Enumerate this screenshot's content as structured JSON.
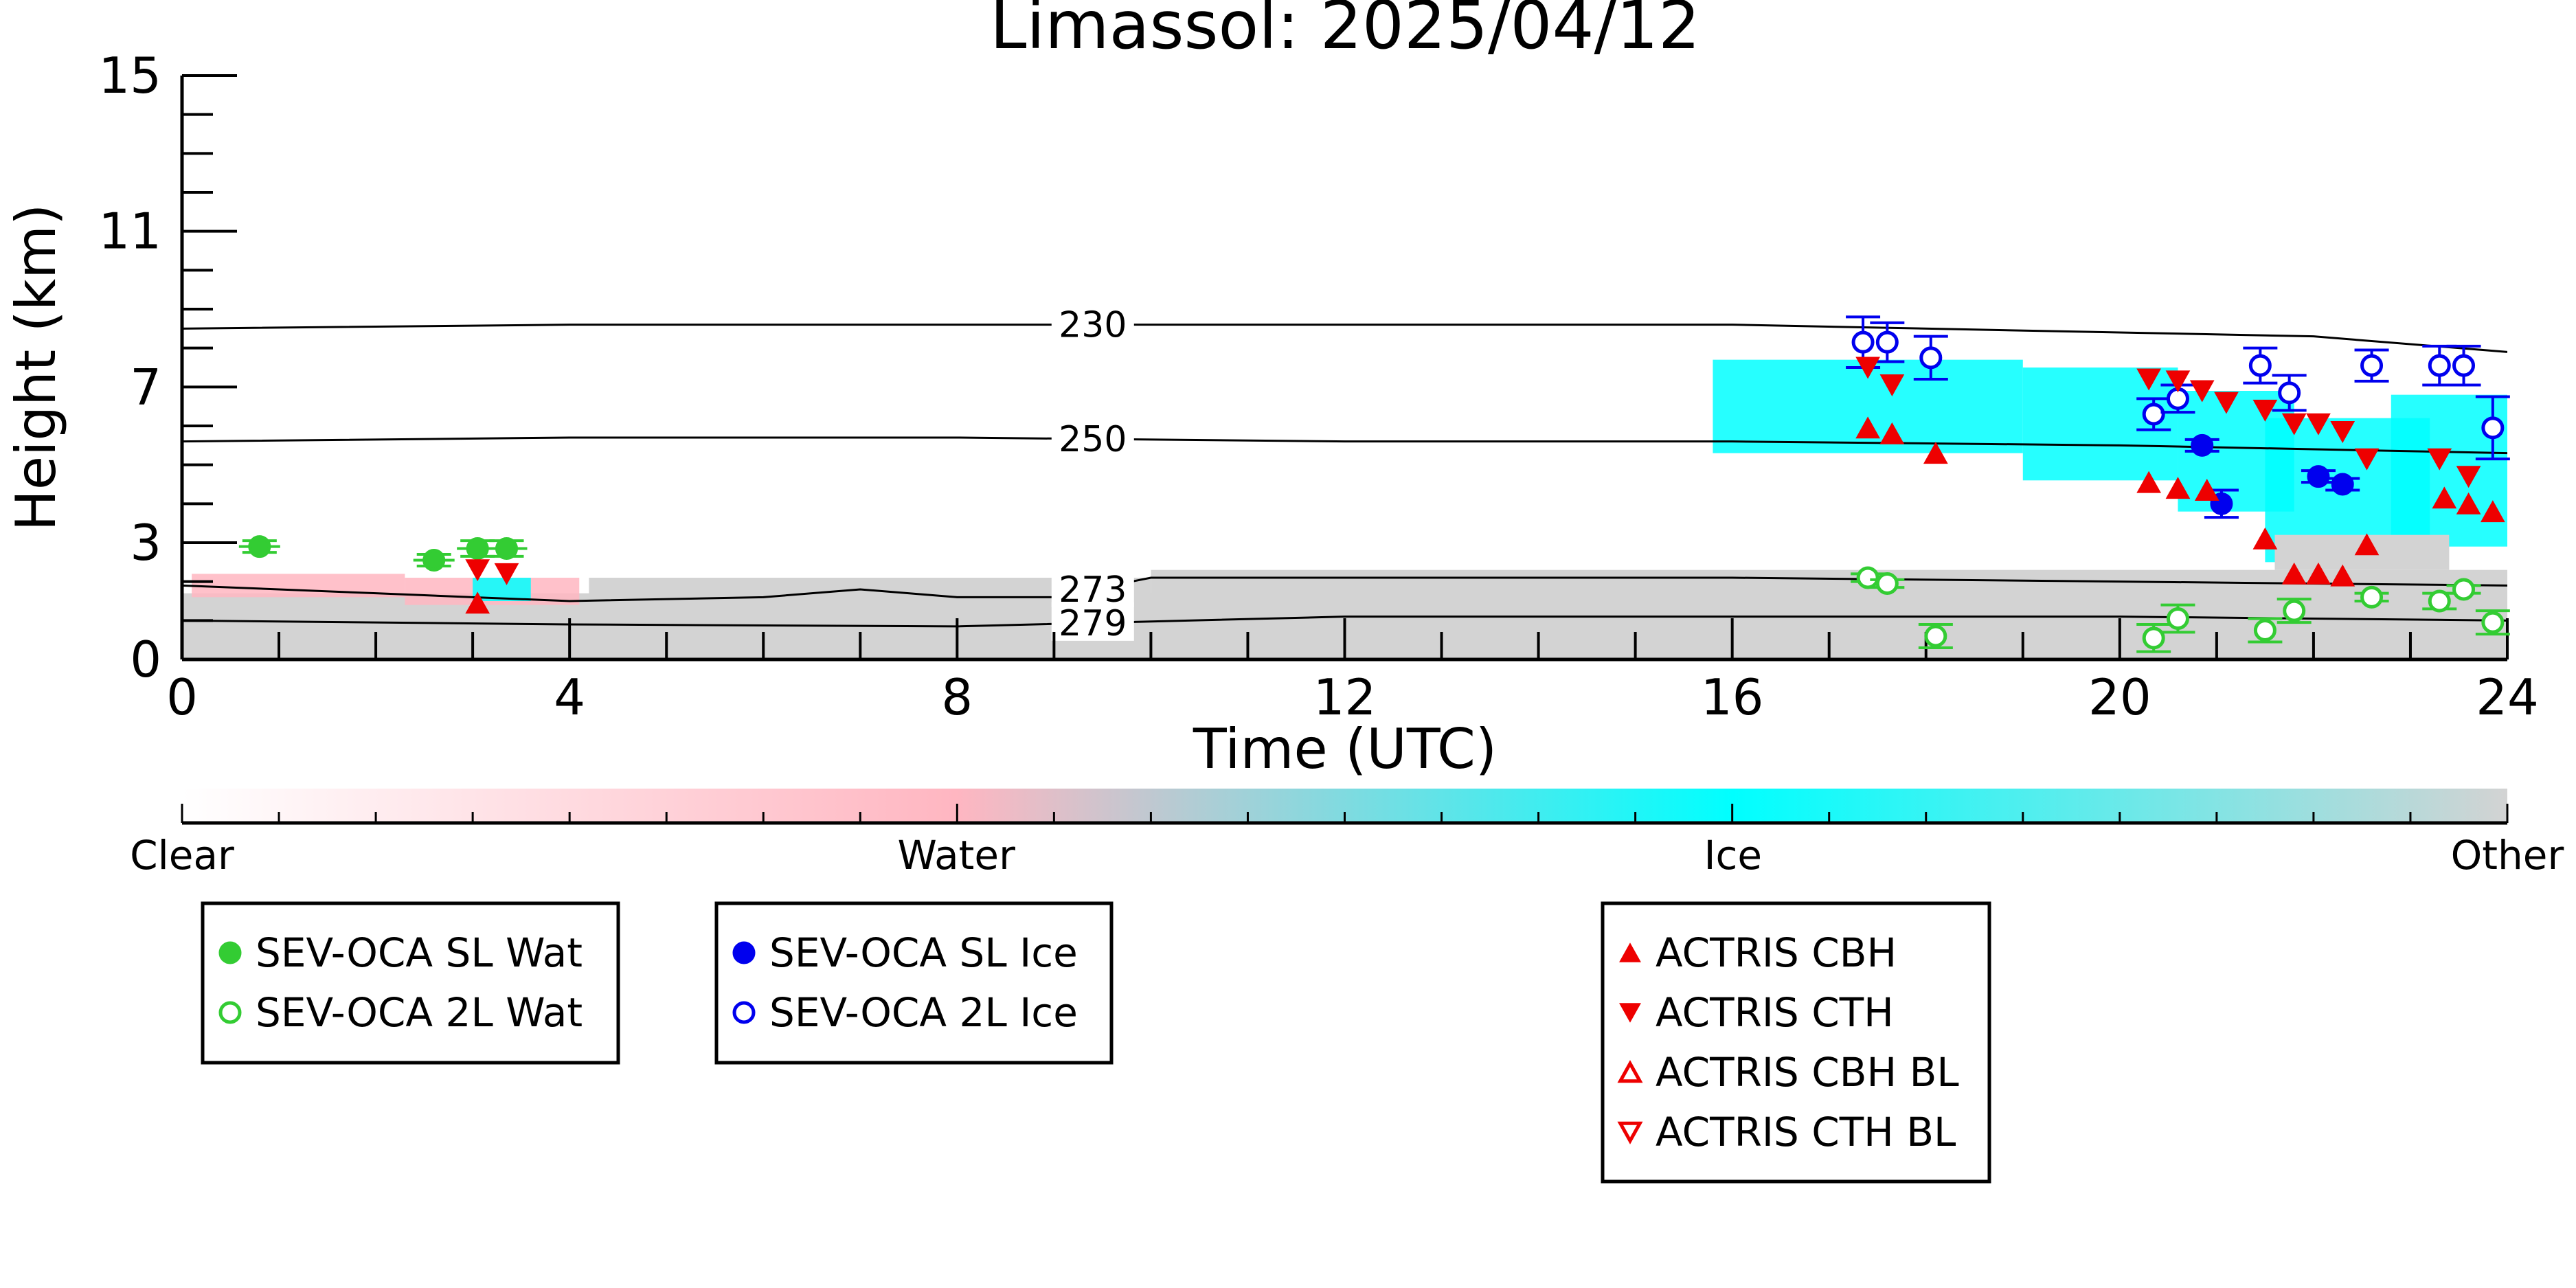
{
  "chart_data": {
    "type": "scatter",
    "title": "Limassol: 2025/04/12",
    "xlabel": "Time (UTC)",
    "ylabel": "Height (km)",
    "xlim": [
      0,
      24
    ],
    "ylim": [
      0,
      15
    ],
    "xticks": [
      0,
      4,
      8,
      12,
      16,
      20,
      24
    ],
    "yticks": [
      0,
      3,
      7,
      11,
      15
    ],
    "grid": false,
    "background_classification": {
      "description_colorbar": [
        "Clear",
        "Water",
        "Ice",
        "Other"
      ],
      "colors": [
        "#ffffff",
        "#ffb6c1",
        "#00ffff",
        "#d3d3d3"
      ],
      "regions": [
        {
          "class": "Other",
          "x": [
            0,
            24
          ],
          "y": [
            0,
            1.7
          ]
        },
        {
          "class": "Water",
          "x": [
            0.1,
            2.3
          ],
          "y": [
            1.6,
            2.2
          ]
        },
        {
          "class": "Water",
          "x": [
            2.3,
            4.1
          ],
          "y": [
            1.4,
            2.1
          ]
        },
        {
          "class": "Ice",
          "x": [
            3.0,
            3.6
          ],
          "y": [
            1.5,
            2.1
          ]
        },
        {
          "class": "Other",
          "x": [
            4.2,
            10
          ],
          "y": [
            1.4,
            2.1
          ]
        },
        {
          "class": "Other",
          "x": [
            10,
            24
          ],
          "y": [
            1.6,
            2.3
          ]
        },
        {
          "class": "Ice",
          "x": [
            15.8,
            19.0
          ],
          "y": [
            5.3,
            7.7
          ]
        },
        {
          "class": "Ice",
          "x": [
            19.0,
            20.6
          ],
          "y": [
            4.6,
            7.5
          ]
        },
        {
          "class": "Ice",
          "x": [
            20.6,
            21.8
          ],
          "y": [
            3.8,
            6.9
          ]
        },
        {
          "class": "Ice",
          "x": [
            21.5,
            23.2
          ],
          "y": [
            2.5,
            6.2
          ]
        },
        {
          "class": "Ice",
          "x": [
            22.8,
            24
          ],
          "y": [
            2.9,
            6.8
          ]
        },
        {
          "class": "Other",
          "x": [
            21.6,
            23.4
          ],
          "y": [
            2.3,
            3.2
          ]
        }
      ]
    },
    "contours": [
      {
        "label": "230",
        "x": [
          0,
          4,
          8,
          12,
          16,
          20,
          22,
          24
        ],
        "y": [
          8.5,
          8.6,
          8.6,
          8.6,
          8.6,
          8.4,
          8.3,
          7.9
        ]
      },
      {
        "label": "250",
        "x": [
          0,
          4,
          8,
          12,
          16,
          20,
          22,
          24
        ],
        "y": [
          5.6,
          5.7,
          5.7,
          5.6,
          5.6,
          5.5,
          5.4,
          5.3
        ]
      },
      {
        "label": "273",
        "x": [
          0,
          2,
          4,
          6,
          7,
          8,
          9,
          10,
          12,
          16,
          20,
          24
        ],
        "y": [
          1.9,
          1.7,
          1.5,
          1.6,
          1.8,
          1.6,
          1.6,
          2.1,
          2.1,
          2.1,
          2.0,
          1.9
        ]
      },
      {
        "label": "279",
        "x": [
          0,
          4,
          8,
          12,
          16,
          20,
          24
        ],
        "y": [
          1.0,
          0.9,
          0.85,
          1.1,
          1.1,
          1.1,
          1.0
        ]
      }
    ],
    "series": [
      {
        "name": "SEV-OCA SL Wat",
        "color": "#33cc33",
        "marker": "circle-filled",
        "points": [
          [
            0.8,
            2.9,
            0.15
          ],
          [
            2.6,
            2.55,
            0.15
          ],
          [
            3.05,
            2.85,
            0.2
          ],
          [
            3.35,
            2.85,
            0.2
          ]
        ]
      },
      {
        "name": "SEV-OCA 2L Wat",
        "color": "#33cc33",
        "marker": "circle-open",
        "points": [
          [
            17.4,
            2.1,
            0.1
          ],
          [
            17.6,
            1.95,
            0.1
          ],
          [
            18.1,
            0.6,
            0.3
          ],
          [
            20.35,
            0.55,
            0.35
          ],
          [
            20.6,
            1.05,
            0.35
          ],
          [
            21.5,
            0.75,
            0.3
          ],
          [
            21.8,
            1.25,
            0.3
          ],
          [
            22.6,
            1.6,
            0.1
          ],
          [
            23.3,
            1.5,
            0.2
          ],
          [
            23.55,
            1.8,
            0.1
          ],
          [
            23.85,
            0.95,
            0.3
          ]
        ]
      },
      {
        "name": "SEV-OCA SL Ice",
        "color": "#0000ee",
        "marker": "circle-filled",
        "points": [
          [
            20.85,
            5.5,
            0.15
          ],
          [
            21.05,
            4.0,
            0.35
          ],
          [
            22.05,
            4.7,
            0.15
          ],
          [
            22.3,
            4.5,
            0.15
          ]
        ]
      },
      {
        "name": "SEV-OCA 2L Ice",
        "color": "#0000ee",
        "marker": "circle-open",
        "points": [
          [
            17.35,
            8.15,
            0.65
          ],
          [
            17.6,
            8.15,
            0.5
          ],
          [
            18.05,
            7.75,
            0.55
          ],
          [
            20.35,
            6.3,
            0.4
          ],
          [
            20.6,
            6.7,
            0.35
          ],
          [
            21.45,
            7.55,
            0.45
          ],
          [
            21.75,
            6.85,
            0.45
          ],
          [
            22.6,
            7.55,
            0.4
          ],
          [
            23.3,
            7.55,
            0.5
          ],
          [
            23.55,
            7.55,
            0.5
          ],
          [
            23.85,
            5.95,
            0.8
          ]
        ]
      },
      {
        "name": "ACTRIS CBH",
        "color": "#ee0000",
        "marker": "triangle-up-filled",
        "points": [
          [
            3.05,
            1.45
          ],
          [
            17.4,
            5.95
          ],
          [
            17.65,
            5.8
          ],
          [
            18.1,
            5.3
          ],
          [
            20.3,
            4.55
          ],
          [
            20.6,
            4.4
          ],
          [
            20.9,
            4.35
          ],
          [
            21.5,
            3.1
          ],
          [
            21.8,
            2.2
          ],
          [
            22.05,
            2.2
          ],
          [
            22.3,
            2.15
          ],
          [
            22.55,
            2.95
          ],
          [
            23.35,
            4.15
          ],
          [
            23.6,
            4.0
          ],
          [
            23.85,
            3.8
          ]
        ]
      },
      {
        "name": "ACTRIS CTH",
        "color": "#ee0000",
        "marker": "triangle-down-filled",
        "points": [
          [
            3.05,
            2.3
          ],
          [
            3.35,
            2.2
          ],
          [
            17.4,
            7.5
          ],
          [
            17.65,
            7.05
          ],
          [
            20.3,
            7.2
          ],
          [
            20.6,
            7.15
          ],
          [
            20.85,
            6.9
          ],
          [
            21.1,
            6.6
          ],
          [
            21.5,
            6.4
          ],
          [
            21.8,
            6.05
          ],
          [
            22.05,
            6.05
          ],
          [
            22.3,
            5.85
          ],
          [
            22.55,
            5.15
          ],
          [
            23.3,
            5.15
          ],
          [
            23.6,
            4.7
          ]
        ]
      },
      {
        "name": "ACTRIS CBH BL",
        "color": "#ee0000",
        "marker": "triangle-up-open",
        "points": []
      },
      {
        "name": "ACTRIS CTH BL",
        "color": "#ee0000",
        "marker": "triangle-down-open",
        "points": []
      }
    ],
    "legends": [
      [
        "SEV-OCA SL Wat",
        "SEV-OCA 2L Wat"
      ],
      [
        "SEV-OCA SL Ice",
        "SEV-OCA 2L Ice"
      ],
      [
        "ACTRIS CBH",
        "ACTRIS CTH",
        "ACTRIS CBH BL",
        "ACTRIS CTH BL"
      ]
    ],
    "colorbar": {
      "labels": [
        "Clear",
        "Water",
        "Ice",
        "Other"
      ],
      "positions": [
        0,
        0.333,
        0.667,
        1.0
      ],
      "colors": [
        "#ffffff",
        "#ffb6c1",
        "#00ffff",
        "#d3d3d3"
      ]
    }
  }
}
